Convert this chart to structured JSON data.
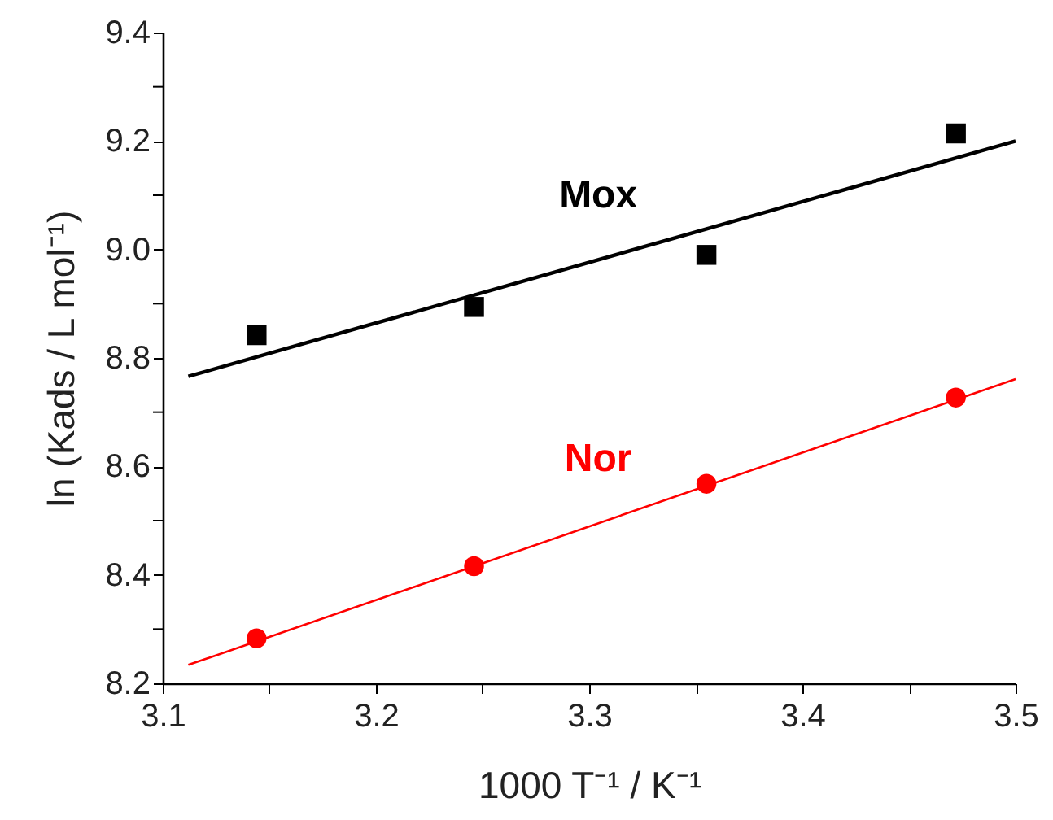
{
  "chart_data": {
    "type": "scatter",
    "xlabel": "1000 T⁻¹ / K⁻¹",
    "ylabel": "ln (Kads / L mol⁻¹)",
    "xlim": [
      3.1,
      3.5
    ],
    "ylim": [
      8.2,
      9.4
    ],
    "xticks": [
      3.1,
      {
        "value": 3.15,
        "label": null
      },
      3.2,
      {
        "value": 3.25,
        "label": null
      },
      3.3,
      {
        "value": 3.35,
        "label": null
      },
      3.4,
      {
        "value": 3.45,
        "label": null
      },
      3.5
    ],
    "yticks": [
      8.2,
      {
        "value": 8.3,
        "label": null
      },
      8.4,
      {
        "value": 8.5,
        "label": null
      },
      8.6,
      {
        "value": 8.7,
        "label": null
      },
      8.8,
      {
        "value": 8.9,
        "label": null
      },
      {
        "value": 9,
        "label": "9.0"
      },
      {
        "value": 9.1,
        "label": null
      },
      9.2,
      {
        "value": 9.3,
        "label": null
      },
      9.4
    ],
    "grid": false,
    "series": [
      {
        "name": "Mox",
        "marker": "square",
        "color": "#000000",
        "x": [
          3.144,
          3.246,
          3.355,
          3.472
        ],
        "values": [
          8.842,
          8.894,
          8.99,
          9.214
        ]
      },
      {
        "type": "line",
        "color": "#000000",
        "x": [
          3.112,
          3.5
        ],
        "values": [
          8.766,
          9.2
        ]
      },
      {
        "name": "Nor",
        "marker": "circle",
        "color": "#ff0000",
        "x": [
          3.144,
          3.246,
          3.355,
          3.472
        ],
        "values": [
          8.283,
          8.416,
          8.568,
          8.727
        ]
      },
      {
        "type": "line",
        "color": "#ff0000",
        "x": [
          3.112,
          3.5
        ],
        "values": [
          8.234,
          8.761
        ]
      }
    ]
  }
}
